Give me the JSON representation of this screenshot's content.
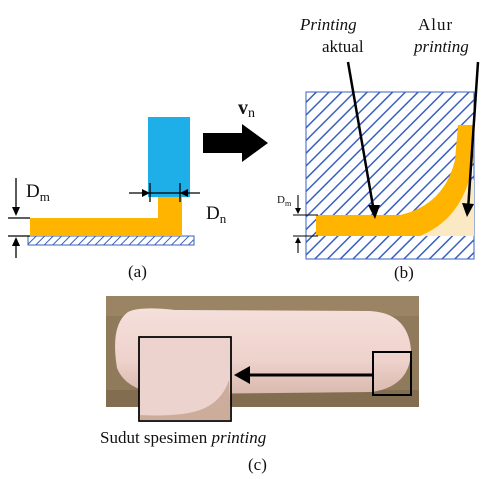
{
  "panel_a": {
    "label": "(a)",
    "velocity_label": "v",
    "velocity_sub": "n",
    "dm_label": "D",
    "dm_sub": "m",
    "dn_label": "D",
    "dn_sub": "n",
    "colors": {
      "nozzle": "#1eaee8",
      "bead": "#ffb400",
      "bed_hatch": "#3a60c0"
    }
  },
  "panel_b": {
    "label": "(b)",
    "printing_aktual_italic": "Printing",
    "printing_aktual_rest": "aktual",
    "alur_word": "Alur",
    "alur_italic": "printing",
    "dm_label": "D",
    "dm_sub": "m",
    "colors": {
      "hatch": "#3a60c0",
      "path_fill": "#fbe9c4",
      "bead": "#ffb400"
    }
  },
  "panel_c": {
    "label": "(c)",
    "caption_normal": "Sudut spesimen ",
    "caption_italic": "printing",
    "colors": {
      "background": "#8f7b5c",
      "specimen": "#efd5d0",
      "arrow": "#000000"
    }
  }
}
